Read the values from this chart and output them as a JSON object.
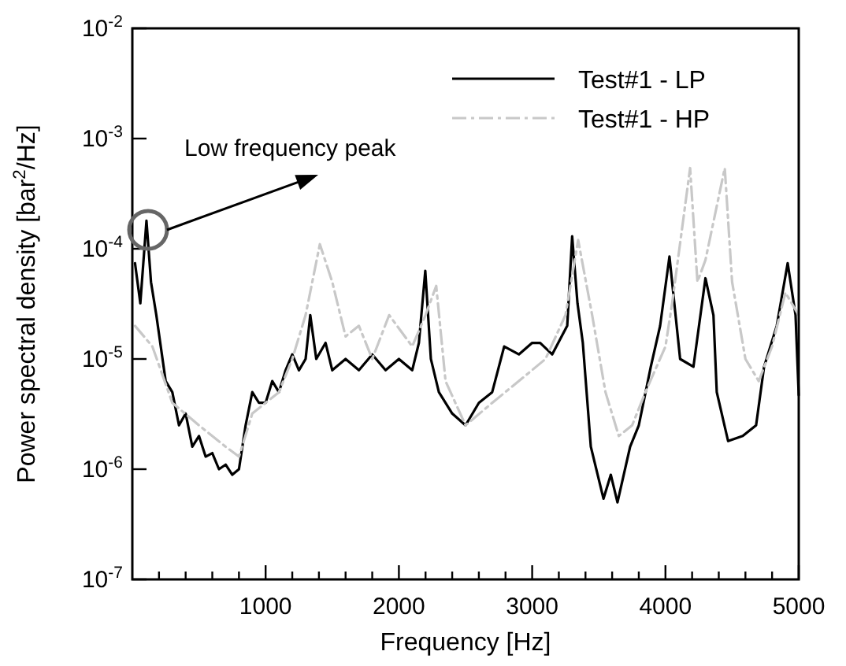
{
  "chart_data": {
    "type": "line",
    "xlabel": "Frequency [Hz]",
    "ylabel": "Power spectral density [bar$^{2}$/Hz]",
    "log": "y",
    "xlim": [
      0,
      5000
    ],
    "ylim": [
      1e-07,
      0.01
    ],
    "xticks": [
      {
        "value": 200,
        "label": null
      },
      {
        "value": 400,
        "label": null
      },
      {
        "value": 600,
        "label": null
      },
      {
        "value": 800,
        "label": null
      },
      1000,
      {
        "value": 1200,
        "label": null
      },
      {
        "value": 1400,
        "label": null
      },
      {
        "value": 1600,
        "label": null
      },
      {
        "value": 1800,
        "label": null
      },
      2000,
      {
        "value": 2200,
        "label": null
      },
      {
        "value": 2400,
        "label": null
      },
      {
        "value": 2600,
        "label": null
      },
      {
        "value": 2800,
        "label": null
      },
      3000,
      {
        "value": 3200,
        "label": null
      },
      {
        "value": 3400,
        "label": null
      },
      {
        "value": 3600,
        "label": null
      },
      {
        "value": 3800,
        "label": null
      },
      4000,
      {
        "value": 4200,
        "label": null
      },
      {
        "value": 4400,
        "label": null
      },
      {
        "value": 4600,
        "label": null
      },
      {
        "value": 4800,
        "label": null
      },
      5000
    ],
    "yticks": [
      {
        "value": 1e-07,
        "label": "10$^{-7}$"
      },
      {
        "value": 1e-06,
        "label": "10$^{-6}$"
      },
      {
        "value": 1e-05,
        "label": "10$^{-5}$"
      },
      {
        "value": 0.0001,
        "label": "10$^{-4}$"
      },
      {
        "value": 0.001,
        "label": "10$^{-3}$"
      },
      {
        "value": 0.01,
        "label": "10$^{-2}$"
      }
    ],
    "grid": false,
    "legend": "top right",
    "annotations": [
      "Low frequency peak"
    ],
    "series": [
      {
        "name": "Test#1 - LP",
        "color": "#000000",
        "line_style": "solid",
        "x": [
          20,
          60,
          106,
          140,
          180,
          250,
          300,
          350,
          400,
          450,
          500,
          550,
          600,
          650,
          700,
          750,
          800,
          850,
          900,
          950,
          1000,
          1050,
          1100,
          1150,
          1200,
          1250,
          1300,
          1335,
          1380,
          1450,
          1500,
          1600,
          1700,
          1800,
          1900,
          2000,
          2100,
          2150,
          2198,
          2240,
          2300,
          2400,
          2500,
          2600,
          2700,
          2790,
          2900,
          3000,
          3060,
          3150,
          3263,
          3300,
          3340,
          3380,
          3440,
          3535,
          3590,
          3640,
          3735,
          3800,
          3890,
          3960,
          4030,
          4110,
          4210,
          4300,
          4360,
          4385,
          4470,
          4580,
          4680,
          4740,
          4835,
          4917,
          4976,
          5000
        ],
        "values": [
          7.4e-05,
          3.2e-05,
          0.00018,
          5e-05,
          2.5e-05,
          6.3e-06,
          5e-06,
          2.5e-06,
          3.2e-06,
          1.6e-06,
          2e-06,
          1.3e-06,
          1.4e-06,
          1e-06,
          1.1e-06,
          8.9e-07,
          1e-06,
          2.5e-06,
          5e-06,
          4e-06,
          4e-06,
          6.3e-06,
          5e-06,
          7.9e-06,
          1.1e-05,
          7.9e-06,
          1e-05,
          2.5e-05,
          1e-05,
          1.4e-05,
          7.9e-06,
          1e-05,
          7.9e-06,
          1.1e-05,
          7.9e-06,
          1e-05,
          7.9e-06,
          1.4e-05,
          6.3e-05,
          1e-05,
          5e-06,
          3.2e-06,
          2.5e-06,
          4e-06,
          5e-06,
          1.3e-05,
          1.1e-05,
          1.4e-05,
          1.4e-05,
          1.1e-05,
          2e-05,
          0.00013,
          3.2e-05,
          1.4e-05,
          1.6e-06,
          5.4e-07,
          8.9e-07,
          5e-07,
          1.6e-06,
          2.5e-06,
          8.5e-06,
          2e-05,
          8.5e-05,
          1e-05,
          8.5e-06,
          5.4e-05,
          2.5e-05,
          5e-06,
          1.8e-06,
          2e-06,
          2.5e-06,
          8.5e-06,
          2e-05,
          7.4e-05,
          2.5e-05,
          4.7e-06
        ]
      },
      {
        "name": "Test#1 - HP",
        "color": "#c8c8c8",
        "line_style": "dashed",
        "x": [
          20,
          150,
          300,
          500,
          700,
          800,
          900,
          1100,
          1200,
          1300,
          1407,
          1500,
          1600,
          1700,
          1800,
          1927,
          2100,
          2200,
          2280,
          2350,
          2500,
          2700,
          2900,
          3100,
          3250,
          3345,
          3450,
          3550,
          3650,
          3750,
          3850,
          4000,
          4050,
          4185,
          4240,
          4300,
          4445,
          4500,
          4600,
          4700,
          4800,
          4900,
          5000
        ],
        "values": [
          2e-05,
          1.3e-05,
          4e-06,
          2.5e-06,
          1.6e-06,
          1.3e-06,
          3.2e-06,
          5e-06,
          1e-05,
          2.5e-05,
          0.00011,
          5e-05,
          1.6e-05,
          2e-05,
          1e-05,
          2.5e-05,
          1.3e-05,
          2.5e-05,
          4.6e-05,
          6.3e-06,
          2.5e-06,
          4e-06,
          6.3e-06,
          1e-05,
          2.5e-05,
          0.00012,
          2.5e-05,
          5e-06,
          2e-06,
          2.5e-06,
          5e-06,
          1.3e-05,
          3.2e-05,
          0.00054,
          5e-05,
          7.9e-05,
          0.00054,
          5e-05,
          1e-05,
          6.3e-06,
          1.3e-05,
          4e-05,
          2.5e-05
        ]
      }
    ]
  }
}
